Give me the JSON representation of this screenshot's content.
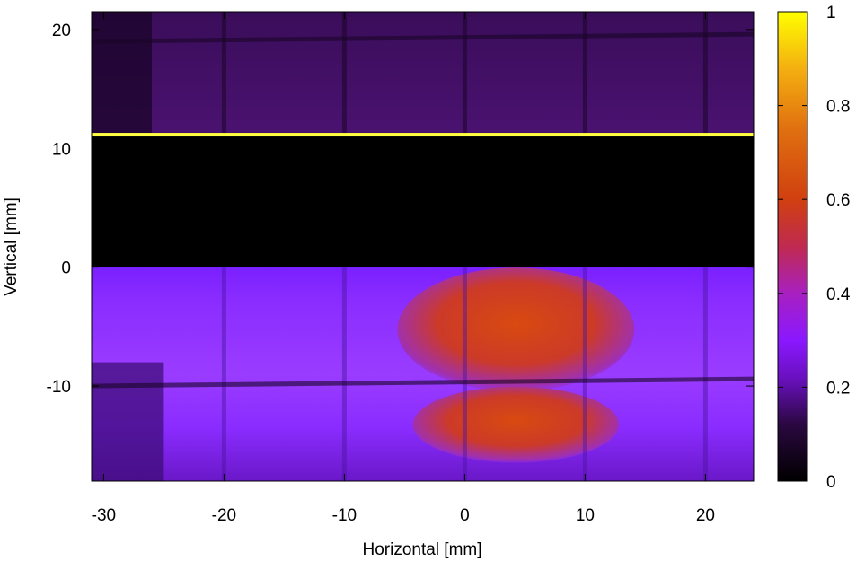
{
  "chart_data": {
    "type": "heatmap",
    "title": "",
    "xlabel": "Horizontal [mm]",
    "ylabel": "Vertical [mm]",
    "xlim": [
      -31,
      24
    ],
    "ylim": [
      -18,
      21.5
    ],
    "xticks": [
      {
        "value": -30,
        "label": "-30"
      },
      {
        "value": -20,
        "label": "-20"
      },
      {
        "value": -10,
        "label": "-10"
      },
      {
        "value": 0,
        "label": "0"
      },
      {
        "value": 10,
        "label": "10"
      },
      {
        "value": 20,
        "label": "20"
      }
    ],
    "yticks": [
      {
        "value": -10,
        "label": "-10"
      },
      {
        "value": 0,
        "label": "0"
      },
      {
        "value": 10,
        "label": "10"
      },
      {
        "value": 20,
        "label": "20"
      }
    ],
    "colorbar": {
      "range": [
        0,
        1
      ],
      "colormap": [
        "#000000",
        "#3a0a5a",
        "#6a10b8",
        "#8a18ff",
        "#a020c8",
        "#c83a20",
        "#d85a10",
        "#ef9010",
        "#ffff00"
      ],
      "ticks": [
        {
          "value": 0,
          "label": "0"
        },
        {
          "value": 0.2,
          "label": "0.2"
        },
        {
          "value": 0.4,
          "label": "0.4"
        },
        {
          "value": 0.6,
          "label": "0.6"
        },
        {
          "value": 0.8,
          "label": "0.8"
        },
        {
          "value": 1,
          "label": "1"
        }
      ]
    },
    "regions": [
      {
        "name": "upper-band",
        "x": [
          -31,
          24
        ],
        "y": [
          11.2,
          21.5
        ],
        "value": 0.1
      },
      {
        "name": "bright-line",
        "x": [
          -31,
          24
        ],
        "y": [
          11.0,
          11.3
        ],
        "value": 1.0
      },
      {
        "name": "dark-gap",
        "x": [
          -31,
          24
        ],
        "y": [
          0,
          11.0
        ],
        "value": 0.0
      },
      {
        "name": "lower-band",
        "x": [
          -31,
          24
        ],
        "y": [
          -18,
          0
        ],
        "value": 0.25
      },
      {
        "name": "hot-spot-upper",
        "x": [
          -5,
          13.5
        ],
        "y": [
          -10,
          -0.5
        ],
        "value": 0.55
      },
      {
        "name": "hot-spot-lower",
        "x": [
          -4,
          12.5
        ],
        "y": [
          -16,
          -10.5
        ],
        "value": 0.5
      }
    ],
    "grid_lines_x": [
      -20,
      -10,
      0,
      10,
      20
    ],
    "grid_lines_y": [
      -10,
      19
    ]
  }
}
